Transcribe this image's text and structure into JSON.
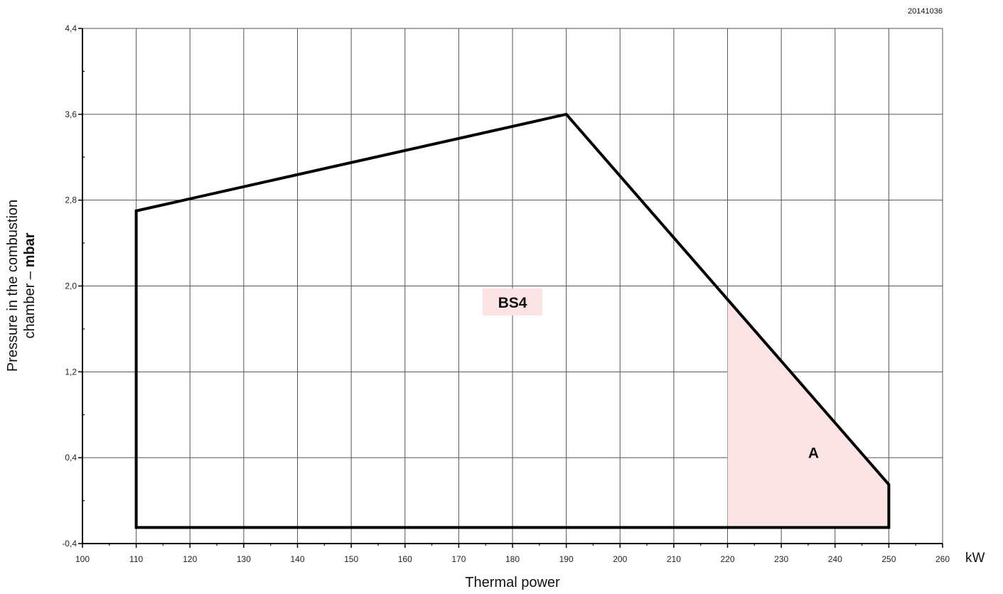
{
  "figure_code": "20141036",
  "chart_data": {
    "type": "area",
    "xlabel": "Thermal power",
    "x_unit": "kW",
    "ylabel_line1": "Pressure in the combustion",
    "ylabel_line2": "chamber – ",
    "ylabel_unit": "mbar",
    "xlim": [
      100,
      260
    ],
    "ylim": [
      -0.4,
      4.4
    ],
    "x_ticks": [
      100,
      110,
      120,
      130,
      140,
      150,
      160,
      170,
      180,
      190,
      200,
      210,
      220,
      230,
      240,
      250,
      260
    ],
    "x_tick_labels": [
      "100",
      "110",
      "120",
      "130",
      "140",
      "150",
      "160",
      "170",
      "180",
      "190",
      "200",
      "210",
      "220",
      "230",
      "240",
      "250",
      "260"
    ],
    "y_ticks": [
      -0.4,
      0.4,
      1.2,
      2.0,
      2.8,
      3.6,
      4.4
    ],
    "y_tick_labels": [
      "-0,4",
      "0,4",
      "1,2",
      "2,0",
      "2,8",
      "3,6",
      "4,4"
    ],
    "grid": true,
    "series": [
      {
        "name": "BS4",
        "color": "#000000",
        "points": [
          {
            "x": 110,
            "y": -0.25
          },
          {
            "x": 110,
            "y": 2.7
          },
          {
            "x": 190,
            "y": 3.6
          },
          {
            "x": 250,
            "y": 0.15
          },
          {
            "x": 250,
            "y": -0.25
          }
        ]
      }
    ],
    "shaded_regions": [
      {
        "name": "A",
        "color": "#fce4e6",
        "points": [
          {
            "x": 220,
            "y": -0.25
          },
          {
            "x": 220,
            "y": 1.9
          },
          {
            "x": 250,
            "y": 0.15
          },
          {
            "x": 250,
            "y": -0.25
          }
        ]
      }
    ],
    "annotations": [
      {
        "text": "BS4",
        "x": 180,
        "y": 1.85,
        "background": "#fce4e6"
      },
      {
        "text": "A",
        "x": 236,
        "y": 0.45
      }
    ]
  }
}
